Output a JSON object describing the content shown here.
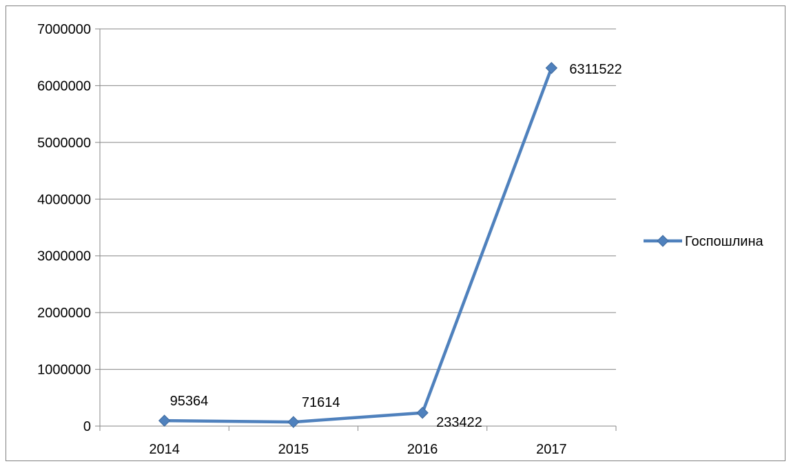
{
  "chart_data": {
    "type": "line",
    "categories": [
      "2014",
      "2015",
      "2016",
      "2017"
    ],
    "series": [
      {
        "name": "Госпошлина",
        "values": [
          95364,
          71614,
          233422,
          6311522
        ],
        "color": "#4F81BD",
        "marker": "diamond",
        "data_labels": [
          "95364",
          "71614",
          "233422",
          "6311522"
        ]
      }
    ],
    "ylim": [
      0,
      7000000
    ],
    "yticks": [
      0,
      1000000,
      2000000,
      3000000,
      4000000,
      5000000,
      6000000,
      7000000
    ],
    "ytick_labels": [
      "0",
      "1000000",
      "2000000",
      "3000000",
      "4000000",
      "5000000",
      "6000000",
      "7000000"
    ],
    "grid": "horizontal",
    "legend_position": "right"
  }
}
